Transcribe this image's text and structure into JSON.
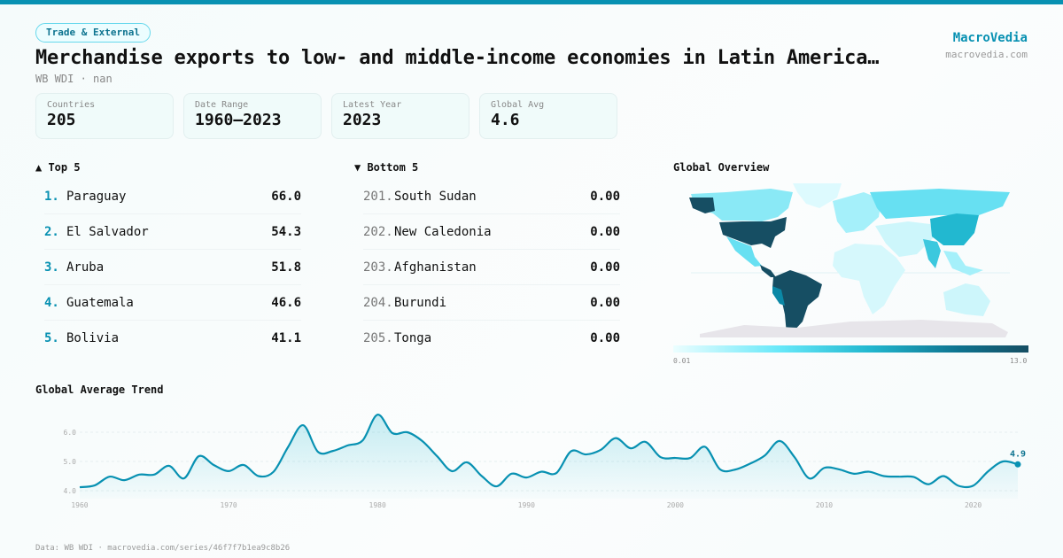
{
  "header": {
    "category": "Trade & External",
    "title": "Merchandise exports to low- and middle-income economies in Latin America…",
    "subtitle": "WB WDI · nan",
    "brand": "MacroVedia",
    "brand_url": "macrovedia.com"
  },
  "stats": [
    {
      "label": "Countries",
      "value": "205"
    },
    {
      "label": "Date Range",
      "value": "1960–2023"
    },
    {
      "label": "Latest Year",
      "value": "2023"
    },
    {
      "label": "Global Avg",
      "value": "4.6"
    }
  ],
  "top": {
    "title": "▲ Top 5",
    "items": [
      {
        "rank": "1.",
        "name": "Paraguay",
        "value": "66.0"
      },
      {
        "rank": "2.",
        "name": "El Salvador",
        "value": "54.3"
      },
      {
        "rank": "3.",
        "name": "Aruba",
        "value": "51.8"
      },
      {
        "rank": "4.",
        "name": "Guatemala",
        "value": "46.6"
      },
      {
        "rank": "5.",
        "name": "Bolivia",
        "value": "41.1"
      }
    ]
  },
  "bottom": {
    "title": "▼ Bottom 5",
    "items": [
      {
        "rank": "201.",
        "name": "South Sudan",
        "value": "0.00"
      },
      {
        "rank": "202.",
        "name": "New Caledonia",
        "value": "0.00"
      },
      {
        "rank": "203.",
        "name": "Afghanistan",
        "value": "0.00"
      },
      {
        "rank": "204.",
        "name": "Burundi",
        "value": "0.00"
      },
      {
        "rank": "205.",
        "name": "Tonga",
        "value": "0.00"
      }
    ]
  },
  "map": {
    "title": "Global Overview",
    "scale_min": "0.01",
    "scale_max": "13.0",
    "colors": {
      "low": "#ecfeff",
      "mid": "#22b8d0",
      "high": "#164e63",
      "no_data": "#e7e5ea"
    }
  },
  "chart_data": {
    "type": "area",
    "title": "Global Average Trend",
    "x": [
      1960,
      1961,
      1962,
      1963,
      1964,
      1965,
      1966,
      1967,
      1968,
      1969,
      1970,
      1971,
      1972,
      1973,
      1974,
      1975,
      1976,
      1977,
      1978,
      1979,
      1980,
      1981,
      1982,
      1983,
      1984,
      1985,
      1986,
      1987,
      1988,
      1989,
      1990,
      1991,
      1992,
      1993,
      1994,
      1995,
      1996,
      1997,
      1998,
      1999,
      2000,
      2001,
      2002,
      2003,
      2004,
      2005,
      2006,
      2007,
      2008,
      2009,
      2010,
      2011,
      2012,
      2013,
      2014,
      2015,
      2016,
      2017,
      2018,
      2019,
      2020,
      2021,
      2022,
      2023
    ],
    "y": [
      4.12,
      4.18,
      4.48,
      4.36,
      4.55,
      4.55,
      4.85,
      4.42,
      5.18,
      4.88,
      4.67,
      4.88,
      4.5,
      4.64,
      5.5,
      6.24,
      5.33,
      5.36,
      5.55,
      5.72,
      6.6,
      5.97,
      6.0,
      5.7,
      5.18,
      4.67,
      4.97,
      4.5,
      4.15,
      4.58,
      4.45,
      4.65,
      4.6,
      5.35,
      5.24,
      5.4,
      5.8,
      5.45,
      5.67,
      5.15,
      5.12,
      5.12,
      5.5,
      4.73,
      4.72,
      4.92,
      5.2,
      5.7,
      5.15,
      4.42,
      4.78,
      4.73,
      4.58,
      4.65,
      4.5,
      4.48,
      4.47,
      4.22,
      4.5,
      4.17,
      4.17,
      4.66,
      5.0,
      4.9
    ],
    "yticks": [
      "4.0",
      "5.0",
      "6.0"
    ],
    "xticks": [
      "1960",
      "1970",
      "1980",
      "1990",
      "2000",
      "2010",
      "2020"
    ],
    "ylim": [
      3.8,
      6.7
    ],
    "xlim": [
      1960,
      2023
    ],
    "grid": true,
    "last_label": "4.9",
    "color": "#0891b2"
  },
  "footer": "Data: WB WDI · macrovedia.com/series/46f7f7b1ea9c8b26"
}
